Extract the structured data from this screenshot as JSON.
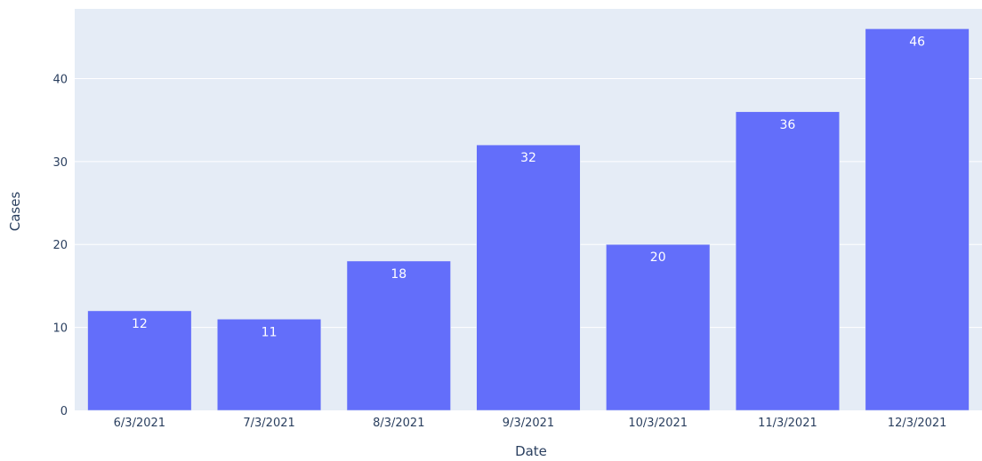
{
  "chart_data": {
    "type": "bar",
    "categories": [
      "6/3/2021",
      "7/3/2021",
      "8/3/2021",
      "9/3/2021",
      "10/3/2021",
      "11/3/2021",
      "12/3/2021"
    ],
    "values": [
      12,
      11,
      18,
      32,
      20,
      36,
      46
    ],
    "title": "",
    "xlabel": "Date",
    "ylabel": "Cases",
    "ylim": [
      0,
      48.4
    ],
    "yticks": [
      0,
      10,
      20,
      30,
      40
    ],
    "grid": true,
    "legend": "none",
    "data_labels": true
  },
  "colors": {
    "bar": "#636efa",
    "plot_background": "#e5ecf6",
    "grid": "#ffffff",
    "text": "#2a3f5f",
    "page_background": "#ffffff"
  }
}
